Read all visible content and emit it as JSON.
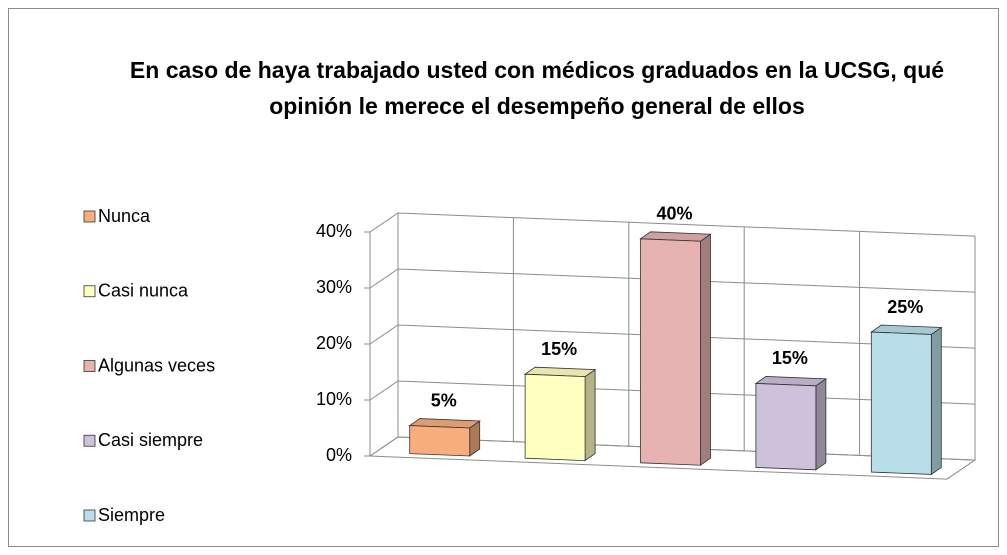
{
  "chart_data": {
    "type": "bar3d",
    "title": "En caso de haya trabajado usted con médicos graduados en la UCSG, qué opinión le merece el desempeño general de ellos",
    "categories": [
      "Nunca",
      "Casi nunca",
      "Algunas veces",
      "Casi siempre",
      "Siempre"
    ],
    "values": [
      5,
      15,
      40,
      15,
      25
    ],
    "value_labels": [
      "5%",
      "15%",
      "40%",
      "15%",
      "25%"
    ],
    "colors": [
      "#f7ae7c",
      "#ffffc0",
      "#e6b2b2",
      "#cdc1db",
      "#b8dfe9"
    ],
    "ylim": [
      0,
      40
    ],
    "yticks": [
      {
        "value": 0,
        "label": "0%"
      },
      {
        "value": 10,
        "label": "10%"
      },
      {
        "value": 20,
        "label": "20%"
      },
      {
        "value": 30,
        "label": "30%"
      },
      {
        "value": 40,
        "label": "40%"
      }
    ],
    "grid": true,
    "legend": "left"
  }
}
